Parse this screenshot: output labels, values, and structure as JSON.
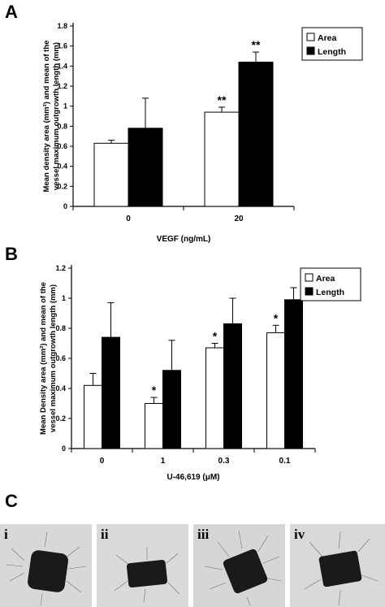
{
  "panels": {
    "a": "A",
    "b": "B",
    "c": "C"
  },
  "legend": {
    "area": "Area",
    "length": "Length"
  },
  "colors": {
    "area": "#ffffff",
    "length": "#000000",
    "photo_bg": "#d8d8d8",
    "tissue": "#1a1a1a"
  },
  "chart_data": [
    {
      "type": "bar",
      "panel": "A",
      "categories": [
        "0",
        "20"
      ],
      "xlabel": "VEGF (ng/mL)",
      "ylabel": [
        "Mean density area (mm²) and mean of the",
        "vessel maximum outgrowth length (mm)"
      ],
      "ylim": [
        0,
        1.8
      ],
      "yticks": [
        "0",
        "0.2",
        "0.4",
        "0.6",
        "0.8",
        "1",
        "1.2",
        "1.4",
        "1.6",
        "1.8"
      ],
      "series": [
        {
          "name": "Area",
          "values": [
            0.63,
            0.94
          ],
          "errors": [
            0.03,
            0.05
          ],
          "annotations": [
            "",
            "**"
          ]
        },
        {
          "name": "Length",
          "values": [
            0.78,
            1.44
          ],
          "errors": [
            0.3,
            0.1
          ],
          "annotations": [
            "",
            "**"
          ]
        }
      ],
      "legend_position": "top-right",
      "grid": false
    },
    {
      "type": "bar",
      "panel": "B",
      "categories": [
        "0",
        "1",
        "0.3",
        "0.1"
      ],
      "xlabel": "U-46,619 (μM)",
      "ylabel": [
        "Mean Density area (mm²) and mean of the",
        "vessel maximum outgrowth length (mm)"
      ],
      "ylim": [
        0,
        1.2
      ],
      "yticks": [
        "0",
        "0.2",
        "0.4",
        "0.6",
        "0.8",
        "1",
        "1.2"
      ],
      "series": [
        {
          "name": "Area",
          "values": [
            0.42,
            0.3,
            0.67,
            0.77
          ],
          "errors": [
            0.08,
            0.04,
            0.03,
            0.05
          ],
          "annotations": [
            "",
            "*",
            "*",
            "*"
          ]
        },
        {
          "name": "Length",
          "values": [
            0.74,
            0.52,
            0.83,
            0.99
          ],
          "errors": [
            0.23,
            0.2,
            0.17,
            0.08
          ],
          "annotations": [
            "",
            "",
            "",
            ""
          ]
        }
      ],
      "legend_position": "top-right",
      "grid": false
    }
  ],
  "photos": [
    {
      "label": "i"
    },
    {
      "label": "ii"
    },
    {
      "label": "iii"
    },
    {
      "label": "iv"
    }
  ]
}
